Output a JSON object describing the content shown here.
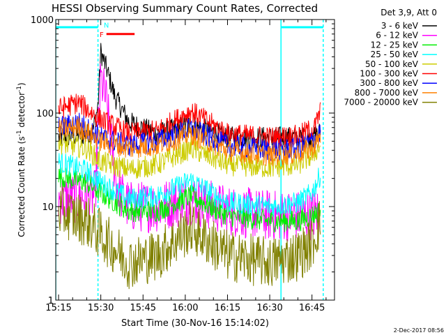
{
  "chart_data": {
    "type": "line",
    "title": "HESSI Observing Summary Count Rates, Corrected",
    "xlabel": "Start Time (30-Nov-16 15:14:02)",
    "ylabel_main": "Corrected Count Rate (s",
    "ylabel_sup1": "-1",
    "ylabel_mid": " detector",
    "ylabel_sup2": "-1",
    "ylabel_end": ")",
    "yscale": "log",
    "ylim": [
      1,
      1000
    ],
    "xlim": [
      "15:14",
      "16:53"
    ],
    "yticks": [
      "1",
      "10",
      "100",
      "1000"
    ],
    "xticks": [
      "15:15",
      "15:30",
      "15:45",
      "16:00",
      "16:15",
      "16:30",
      "16:45"
    ],
    "legend_header": "Det 3,9, Att 0",
    "legend_position": "top-right, outside plot",
    "series": [
      {
        "name": "3 - 6 keV",
        "color": "#000000",
        "x": [
          "15:15",
          "15:27",
          "15:29",
          "15:30",
          "15:32",
          "15:35",
          "15:40",
          "15:50",
          "16:02",
          "16:15",
          "16:30",
          "16:45",
          "16:48"
        ],
        "y": [
          55,
          60,
          120,
          450,
          300,
          150,
          80,
          60,
          75,
          55,
          55,
          55,
          62
        ]
      },
      {
        "name": "6 - 12 keV",
        "color": "#ff00ff",
        "x": [
          "15:15",
          "15:28",
          "15:29",
          "15:30",
          "15:32",
          "15:34",
          "15:36",
          "15:40",
          "15:50",
          "16:02",
          "16:15",
          "16:30",
          "16:45",
          "16:48"
        ],
        "y": [
          12,
          13,
          60,
          230,
          130,
          40,
          15,
          10,
          10,
          12,
          9,
          8,
          8,
          9
        ]
      },
      {
        "name": "12 - 25 keV",
        "color": "#00ee00",
        "x": [
          "15:15",
          "15:25",
          "15:30",
          "15:40",
          "15:50",
          "16:02",
          "16:15",
          "16:30",
          "16:40",
          "16:45",
          "16:48"
        ],
        "y": [
          21,
          18,
          14,
          9,
          9,
          13,
          8,
          7,
          7,
          8,
          9
        ]
      },
      {
        "name": "25 - 50 keV",
        "color": "#00ffff",
        "x": [
          "15:15",
          "15:25",
          "15:30",
          "15:40",
          "15:50",
          "16:02",
          "16:15",
          "16:30",
          "16:40",
          "16:45",
          "16:48"
        ],
        "y": [
          30,
          24,
          18,
          12,
          13,
          19,
          11,
          10,
          11,
          14,
          22
        ]
      },
      {
        "name": "50 - 100 keV",
        "color": "#cccc00",
        "x": [
          "15:15",
          "15:25",
          "15:30",
          "15:40",
          "15:50",
          "16:02",
          "16:15",
          "16:30",
          "16:40",
          "16:45",
          "16:48"
        ],
        "y": [
          48,
          42,
          30,
          25,
          28,
          42,
          28,
          26,
          28,
          35,
          45
        ]
      },
      {
        "name": "100 - 300 keV",
        "color": "#ff0000",
        "x": [
          "15:15",
          "15:22",
          "15:30",
          "15:40",
          "15:50",
          "16:02",
          "16:15",
          "16:30",
          "16:40",
          "16:46",
          "16:48"
        ],
        "y": [
          110,
          130,
          85,
          60,
          65,
          105,
          60,
          55,
          57,
          70,
          105
        ]
      },
      {
        "name": "300 - 800 keV",
        "color": "#0000ff",
        "x": [
          "15:15",
          "15:22",
          "15:30",
          "15:40",
          "15:50",
          "16:02",
          "16:15",
          "16:30",
          "16:40",
          "16:45",
          "16:48"
        ],
        "y": [
          70,
          80,
          55,
          45,
          50,
          68,
          45,
          40,
          42,
          50,
          62
        ]
      },
      {
        "name": "800 - 7000 keV",
        "color": "#ff8000",
        "x": [
          "15:15",
          "15:22",
          "15:30",
          "15:40",
          "15:50",
          "16:02",
          "16:15",
          "16:30",
          "16:40",
          "16:45",
          "16:48"
        ],
        "y": [
          65,
          72,
          50,
          42,
          45,
          60,
          40,
          35,
          37,
          42,
          55
        ]
      },
      {
        "name": "7000 - 20000 keV",
        "color": "#808000",
        "x": [
          "15:15",
          "15:25",
          "15:30",
          "15:40",
          "15:50",
          "16:02",
          "16:15",
          "16:30",
          "16:40",
          "16:45",
          "16:48"
        ],
        "y": [
          9,
          7,
          5,
          2.5,
          3,
          6,
          3,
          2.5,
          3,
          4,
          7
        ]
      }
    ],
    "annotations": [
      {
        "label": "F",
        "color": "#ff0000",
        "x_start": "15:32",
        "x_end": "15:42",
        "y": 700
      },
      {
        "label": "N",
        "color": "#00ffff",
        "x": "15:29",
        "y": 880
      }
    ],
    "reference_lines": [
      {
        "x": "15:14",
        "color": "#00ffff",
        "style": "solid"
      },
      {
        "x": "15:29",
        "color": "#00ffff",
        "style": "dashed"
      },
      {
        "x": "16:34",
        "color": "#00ffff",
        "style": "solid"
      },
      {
        "x": "16:49",
        "color": "#00ffff",
        "style": "dashed"
      }
    ],
    "coverage_bars": [
      {
        "x_start": "15:14",
        "x_end": "15:29",
        "y": 800,
        "color": "#00ffff"
      },
      {
        "x_start": "16:34",
        "x_end": "16:49",
        "y": 800,
        "color": "#00ffff"
      }
    ],
    "footer_date": "2-Dec-2017 08:56"
  }
}
